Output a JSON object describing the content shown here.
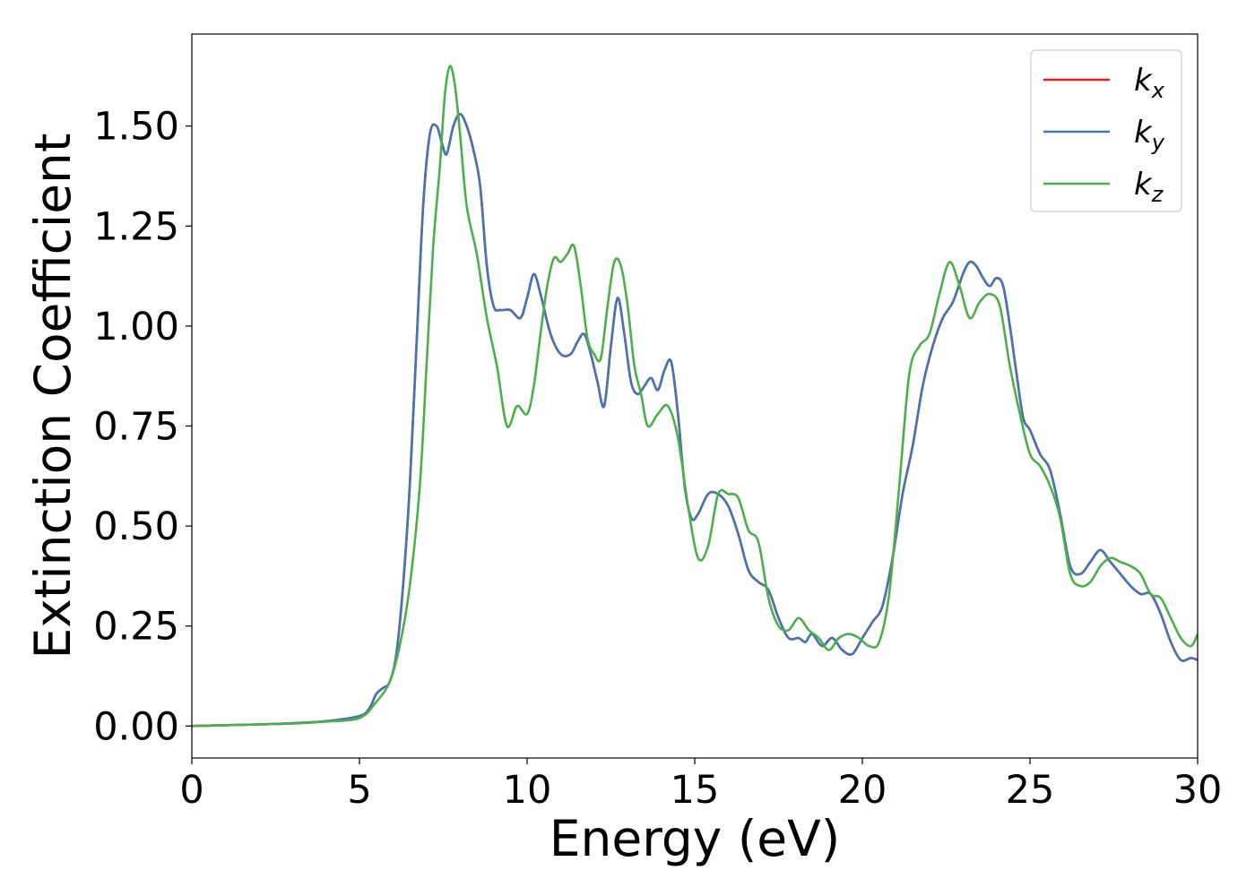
{
  "chart_data": {
    "type": "line",
    "title": "",
    "xlabel": "Energy (eV)",
    "ylabel": "Extinction Coefficient",
    "xlim": [
      0,
      30
    ],
    "ylim": [
      -0.08,
      1.73
    ],
    "xticks": [
      0,
      5,
      10,
      15,
      20,
      25,
      30
    ],
    "xtick_labels": [
      "0",
      "5",
      "10",
      "15",
      "20",
      "25",
      "30"
    ],
    "yticks": [
      0,
      0.25,
      0.5,
      0.75,
      1.0,
      1.25,
      1.5
    ],
    "ytick_labels": [
      "0.00",
      "0.25",
      "0.50",
      "0.75",
      "1.00",
      "1.25",
      "1.50"
    ],
    "grid": false,
    "legend_position": "top-right",
    "series": [
      {
        "name": "kx",
        "label_base": "k",
        "label_sub": "x",
        "color": "#e41a1c",
        "x": [
          0,
          1,
          2,
          3,
          4,
          5,
          5.3,
          5.5,
          5.7,
          5.9,
          6.1,
          6.3,
          6.5,
          6.7,
          6.9,
          7.1,
          7.3,
          7.45,
          7.6,
          7.8,
          8.0,
          8.2,
          8.4,
          8.6,
          8.8,
          9.0,
          9.2,
          9.5,
          9.8,
          10.0,
          10.2,
          10.4,
          10.7,
          11.0,
          11.3,
          11.5,
          11.7,
          11.9,
          12.1,
          12.3,
          12.5,
          12.7,
          12.9,
          13.1,
          13.3,
          13.5,
          13.7,
          13.9,
          14.1,
          14.3,
          14.5,
          14.7,
          14.9,
          15.1,
          15.4,
          15.7,
          16.0,
          16.3,
          16.6,
          16.9,
          17.2,
          17.5,
          17.8,
          18.1,
          18.3,
          18.5,
          18.8,
          19.1,
          19.4,
          19.7,
          20.0,
          20.3,
          20.6,
          20.9,
          21.2,
          21.5,
          21.8,
          22.1,
          22.4,
          22.7,
          23.0,
          23.2,
          23.4,
          23.6,
          23.8,
          24.0,
          24.2,
          24.4,
          24.6,
          24.8,
          25.0,
          25.3,
          25.6,
          25.9,
          26.2,
          26.5,
          26.8,
          27.1,
          27.4,
          27.7,
          28.0,
          28.3,
          28.6,
          28.9,
          29.2,
          29.5,
          29.8,
          30.0
        ],
        "y": [
          0.0,
          0.002,
          0.004,
          0.007,
          0.012,
          0.025,
          0.045,
          0.08,
          0.095,
          0.11,
          0.18,
          0.35,
          0.6,
          0.95,
          1.3,
          1.48,
          1.5,
          1.46,
          1.43,
          1.5,
          1.53,
          1.5,
          1.44,
          1.35,
          1.15,
          1.05,
          1.04,
          1.04,
          1.02,
          1.07,
          1.13,
          1.08,
          0.98,
          0.93,
          0.93,
          0.96,
          0.98,
          0.93,
          0.86,
          0.8,
          0.95,
          1.07,
          0.98,
          0.86,
          0.83,
          0.85,
          0.87,
          0.84,
          0.89,
          0.91,
          0.78,
          0.6,
          0.52,
          0.53,
          0.58,
          0.58,
          0.55,
          0.48,
          0.39,
          0.36,
          0.34,
          0.27,
          0.22,
          0.22,
          0.21,
          0.23,
          0.2,
          0.22,
          0.19,
          0.18,
          0.22,
          0.26,
          0.3,
          0.42,
          0.58,
          0.7,
          0.85,
          0.95,
          1.02,
          1.06,
          1.13,
          1.16,
          1.15,
          1.12,
          1.1,
          1.12,
          1.1,
          1.0,
          0.88,
          0.77,
          0.74,
          0.68,
          0.64,
          0.53,
          0.4,
          0.38,
          0.41,
          0.44,
          0.41,
          0.38,
          0.35,
          0.33,
          0.33,
          0.28,
          0.21,
          0.165,
          0.17,
          0.165
        ]
      },
      {
        "name": "ky",
        "label_base": "k",
        "label_sub": "y",
        "color": "#4575b4",
        "x": [
          0,
          1,
          2,
          3,
          4,
          5,
          5.3,
          5.5,
          5.7,
          5.9,
          6.1,
          6.3,
          6.5,
          6.7,
          6.9,
          7.1,
          7.3,
          7.45,
          7.6,
          7.8,
          8.0,
          8.2,
          8.4,
          8.6,
          8.8,
          9.0,
          9.2,
          9.5,
          9.8,
          10.0,
          10.2,
          10.4,
          10.7,
          11.0,
          11.3,
          11.5,
          11.7,
          11.9,
          12.1,
          12.3,
          12.5,
          12.7,
          12.9,
          13.1,
          13.3,
          13.5,
          13.7,
          13.9,
          14.1,
          14.3,
          14.5,
          14.7,
          14.9,
          15.1,
          15.4,
          15.7,
          16.0,
          16.3,
          16.6,
          16.9,
          17.2,
          17.5,
          17.8,
          18.1,
          18.3,
          18.5,
          18.8,
          19.1,
          19.4,
          19.7,
          20.0,
          20.3,
          20.6,
          20.9,
          21.2,
          21.5,
          21.8,
          22.1,
          22.4,
          22.7,
          23.0,
          23.2,
          23.4,
          23.6,
          23.8,
          24.0,
          24.2,
          24.4,
          24.6,
          24.8,
          25.0,
          25.3,
          25.6,
          25.9,
          26.2,
          26.5,
          26.8,
          27.1,
          27.4,
          27.7,
          28.0,
          28.3,
          28.6,
          28.9,
          29.2,
          29.5,
          29.8,
          30.0
        ],
        "y": [
          0.0,
          0.002,
          0.004,
          0.007,
          0.012,
          0.025,
          0.045,
          0.08,
          0.095,
          0.11,
          0.18,
          0.35,
          0.6,
          0.95,
          1.3,
          1.48,
          1.5,
          1.46,
          1.43,
          1.5,
          1.53,
          1.5,
          1.44,
          1.35,
          1.15,
          1.05,
          1.04,
          1.04,
          1.02,
          1.07,
          1.13,
          1.08,
          0.98,
          0.93,
          0.93,
          0.96,
          0.98,
          0.93,
          0.86,
          0.8,
          0.95,
          1.07,
          0.98,
          0.86,
          0.83,
          0.85,
          0.87,
          0.84,
          0.89,
          0.91,
          0.78,
          0.6,
          0.52,
          0.53,
          0.58,
          0.58,
          0.55,
          0.48,
          0.39,
          0.36,
          0.34,
          0.27,
          0.22,
          0.22,
          0.21,
          0.23,
          0.2,
          0.22,
          0.19,
          0.18,
          0.22,
          0.26,
          0.3,
          0.42,
          0.58,
          0.7,
          0.85,
          0.95,
          1.02,
          1.06,
          1.13,
          1.16,
          1.15,
          1.12,
          1.1,
          1.12,
          1.1,
          1.0,
          0.88,
          0.77,
          0.74,
          0.68,
          0.64,
          0.53,
          0.4,
          0.38,
          0.41,
          0.44,
          0.41,
          0.38,
          0.35,
          0.33,
          0.33,
          0.28,
          0.21,
          0.165,
          0.17,
          0.165
        ]
      },
      {
        "name": "kz",
        "label_base": "k",
        "label_sub": "z",
        "color": "#4daf4a",
        "x": [
          0,
          1,
          2,
          3,
          4,
          5,
          5.5,
          5.9,
          6.2,
          6.5,
          6.8,
          7.0,
          7.2,
          7.4,
          7.55,
          7.7,
          7.85,
          8.0,
          8.2,
          8.5,
          8.8,
          9.1,
          9.4,
          9.7,
          10.0,
          10.2,
          10.4,
          10.6,
          10.8,
          11.0,
          11.2,
          11.4,
          11.6,
          11.8,
          12.0,
          12.2,
          12.4,
          12.6,
          12.8,
          13.0,
          13.2,
          13.4,
          13.6,
          13.9,
          14.2,
          14.5,
          14.8,
          15.1,
          15.4,
          15.7,
          16.0,
          16.3,
          16.6,
          16.9,
          17.2,
          17.5,
          17.8,
          18.1,
          18.4,
          18.7,
          19.0,
          19.3,
          19.6,
          19.9,
          20.2,
          20.5,
          20.8,
          21.1,
          21.4,
          21.7,
          22.0,
          22.3,
          22.6,
          22.9,
          23.2,
          23.5,
          23.8,
          24.1,
          24.4,
          24.7,
          25.0,
          25.3,
          25.6,
          25.9,
          26.2,
          26.5,
          26.8,
          27.1,
          27.4,
          27.7,
          28.0,
          28.3,
          28.6,
          28.9,
          29.2,
          29.5,
          29.8,
          30.0
        ],
        "y": [
          0.0,
          0.002,
          0.004,
          0.006,
          0.011,
          0.02,
          0.06,
          0.11,
          0.2,
          0.35,
          0.6,
          0.9,
          1.2,
          1.4,
          1.58,
          1.65,
          1.6,
          1.48,
          1.3,
          1.18,
          1.02,
          0.9,
          0.75,
          0.8,
          0.78,
          0.85,
          0.98,
          1.1,
          1.17,
          1.16,
          1.18,
          1.2,
          1.1,
          0.97,
          0.93,
          0.92,
          1.05,
          1.16,
          1.15,
          1.05,
          0.9,
          0.83,
          0.75,
          0.78,
          0.8,
          0.72,
          0.55,
          0.42,
          0.45,
          0.58,
          0.58,
          0.57,
          0.49,
          0.46,
          0.32,
          0.25,
          0.24,
          0.27,
          0.24,
          0.22,
          0.19,
          0.22,
          0.23,
          0.22,
          0.2,
          0.21,
          0.33,
          0.6,
          0.88,
          0.95,
          0.98,
          1.08,
          1.16,
          1.1,
          1.02,
          1.06,
          1.08,
          1.05,
          0.9,
          0.78,
          0.68,
          0.65,
          0.6,
          0.52,
          0.38,
          0.35,
          0.36,
          0.4,
          0.42,
          0.41,
          0.4,
          0.38,
          0.33,
          0.32,
          0.27,
          0.22,
          0.2,
          0.23
        ]
      }
    ]
  }
}
